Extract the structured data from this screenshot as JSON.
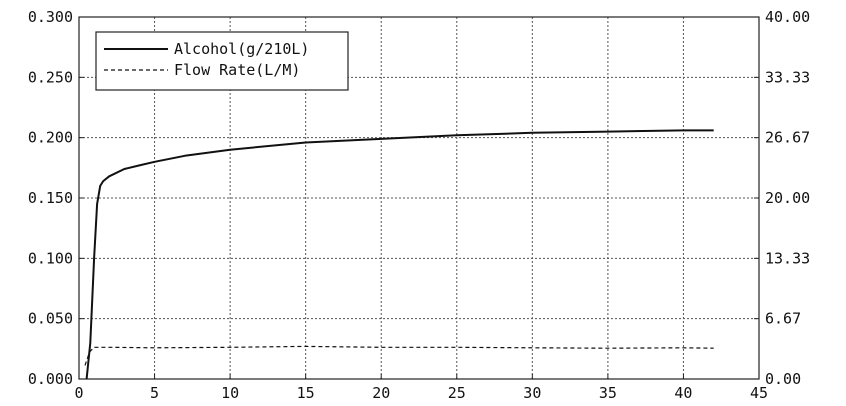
{
  "chart_data": {
    "type": "line",
    "title": "",
    "xlabel": "",
    "ylabel": "",
    "y2label": "",
    "xlim": [
      0,
      45
    ],
    "ylim": [
      0,
      0.3
    ],
    "y2lim": [
      0,
      40
    ],
    "grid": true,
    "legend_position": "top-left",
    "x_ticks": [
      "0",
      "5",
      "10",
      "15",
      "20",
      "25",
      "30",
      "35",
      "40",
      "45"
    ],
    "y_ticks": [
      "0.000",
      "0.050",
      "0.100",
      "0.150",
      "0.200",
      "0.250",
      "0.300"
    ],
    "y2_ticks": [
      "0.00",
      "6.67",
      "13.33",
      "20.00",
      "26.67",
      "33.33",
      "40.00"
    ],
    "series": [
      {
        "name": "Alcohol(g/210L)",
        "axis": "left",
        "style": "solid",
        "color": "#111111",
        "x": [
          0.5,
          0.75,
          1.0,
          1.2,
          1.4,
          1.6,
          2,
          3,
          4,
          5,
          7,
          10,
          15,
          20,
          25,
          30,
          35,
          40,
          42
        ],
        "y": [
          0.0,
          0.03,
          0.1,
          0.145,
          0.16,
          0.164,
          0.168,
          0.174,
          0.177,
          0.18,
          0.185,
          0.19,
          0.196,
          0.199,
          0.202,
          0.204,
          0.205,
          0.206,
          0.206
        ]
      },
      {
        "name": "Flow Rate(L/M)",
        "axis": "right",
        "style": "dashed",
        "color": "#111111",
        "x": [
          0.4,
          0.7,
          1.0,
          2,
          5,
          10,
          15,
          20,
          25,
          30,
          35,
          40,
          42
        ],
        "y": [
          1.5,
          3.0,
          3.5,
          3.5,
          3.45,
          3.5,
          3.6,
          3.5,
          3.5,
          3.45,
          3.4,
          3.45,
          3.4
        ]
      }
    ]
  }
}
